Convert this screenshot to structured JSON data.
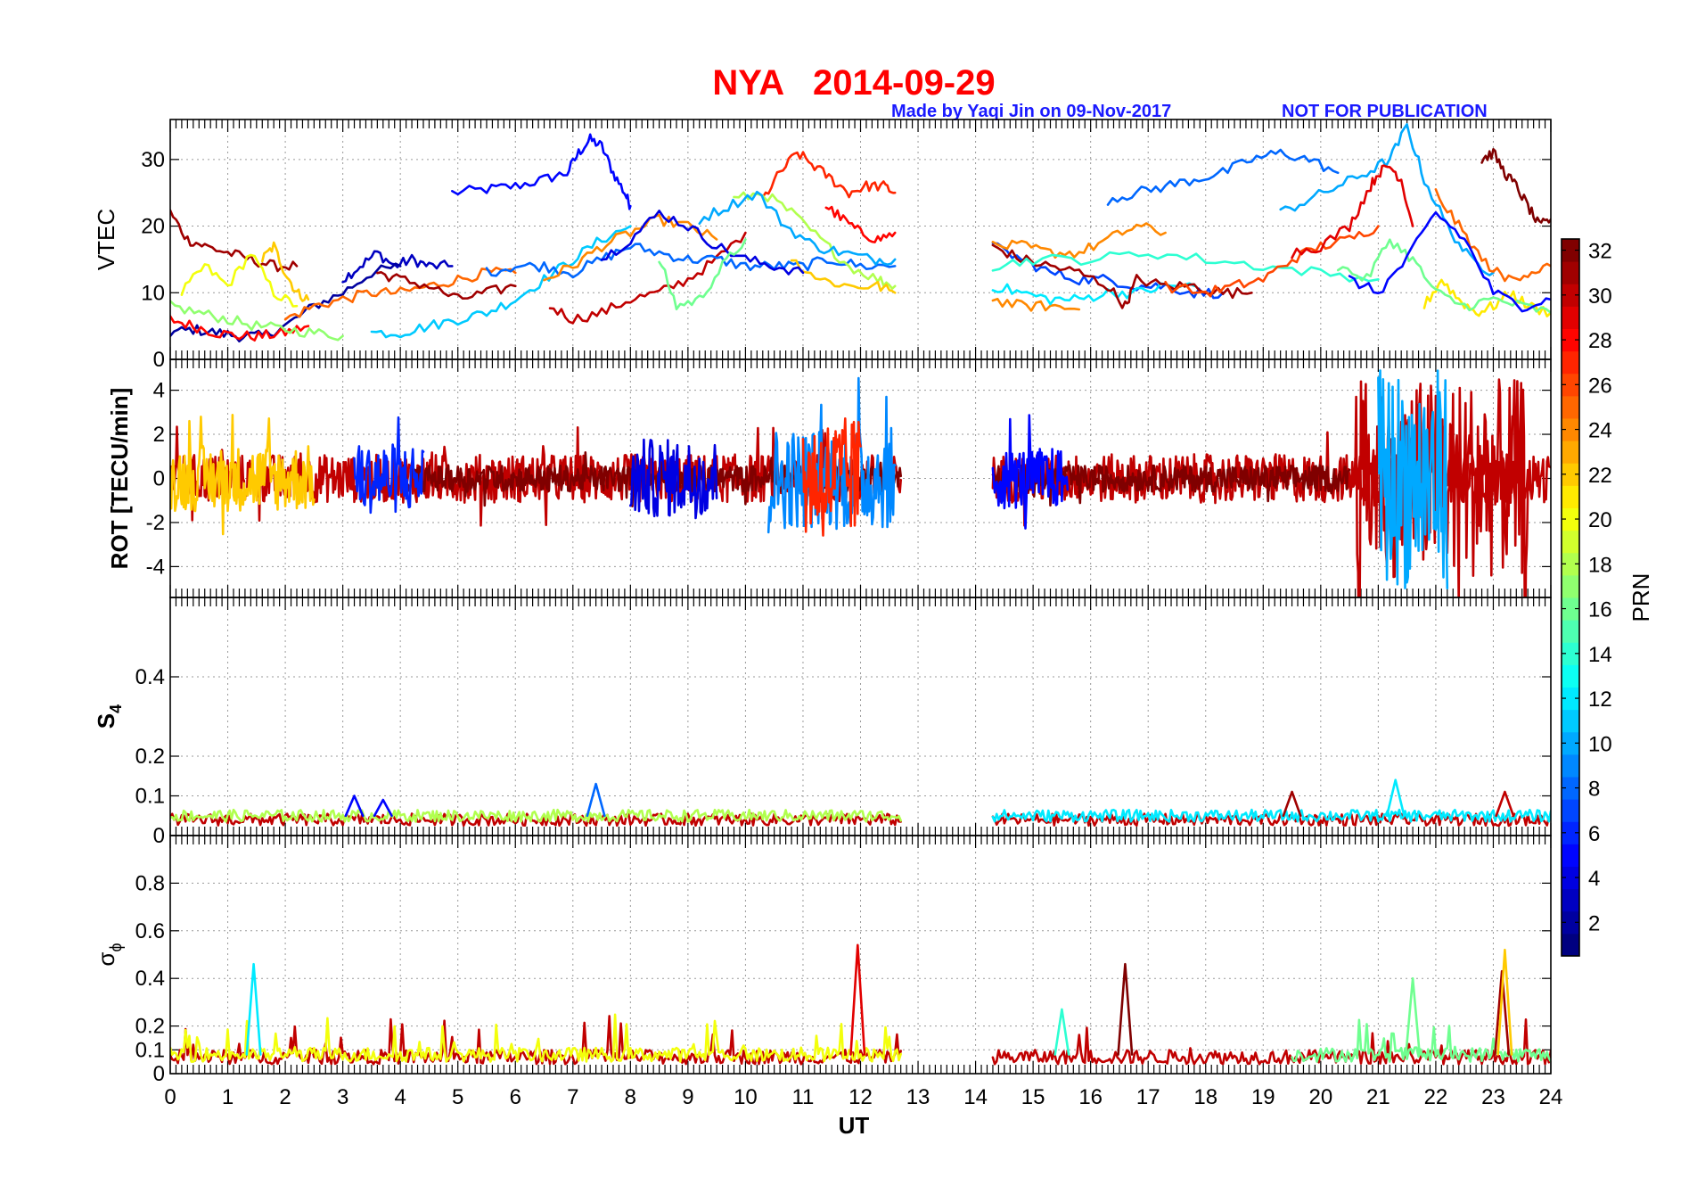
{
  "header": {
    "title": "NYA   2014-09-29",
    "credit": "Made by Yaqi Jin on 09-Nov-2017",
    "notice": "NOT FOR PUBLICATION"
  },
  "chart_data": {
    "type": "line",
    "xlabel": "UT",
    "x_ticks": [
      "0",
      "1",
      "2",
      "3",
      "4",
      "5",
      "6",
      "7",
      "8",
      "9",
      "10",
      "11",
      "12",
      "13",
      "14",
      "15",
      "16",
      "17",
      "18",
      "19",
      "20",
      "21",
      "22",
      "23",
      "24"
    ],
    "xlim": [
      0,
      24
    ],
    "data_gap": [
      12.7,
      14.3
    ],
    "grid": true,
    "panels": [
      {
        "name": "vtec",
        "ylabel": "VTEC",
        "ylim": [
          0,
          36
        ],
        "yticks": [
          "0",
          "10",
          "20",
          "30"
        ],
        "ytick_values": [
          0,
          10,
          20,
          30
        ]
      },
      {
        "name": "rot",
        "ylabel": "ROT [TECU/min]",
        "ylim": [
          -5.4,
          5.4
        ],
        "yticks": [
          "-4",
          "-2",
          "0",
          "2",
          "4"
        ],
        "ytick_values": [
          -4,
          -2,
          0,
          2,
          4
        ]
      },
      {
        "name": "s4",
        "ylabel": "S",
        "ylabel_sub": "4",
        "ylim": [
          0,
          0.6
        ],
        "yticks": [
          "0",
          "0.1",
          "0.2",
          "0.4"
        ],
        "ytick_values": [
          0,
          0.1,
          0.2,
          0.4
        ]
      },
      {
        "name": "sigma",
        "ylabel": "σ",
        "ylabel_sub": "ϕ",
        "ylim": [
          0,
          1
        ],
        "yticks": [
          "0",
          "0.1",
          "0.2",
          "0.4",
          "0.6",
          "0.8"
        ],
        "ytick_values": [
          0,
          0.1,
          0.2,
          0.4,
          0.6,
          0.8
        ]
      }
    ],
    "colorbar": {
      "label": "PRN",
      "range": [
        1,
        32
      ],
      "ticks": [
        "2",
        "4",
        "6",
        "8",
        "10",
        "12",
        "14",
        "16",
        "18",
        "20",
        "22",
        "24",
        "26",
        "28",
        "30",
        "32"
      ],
      "tick_values": [
        2,
        4,
        6,
        8,
        10,
        12,
        14,
        16,
        18,
        20,
        22,
        24,
        26,
        28,
        30,
        32
      ],
      "colormap": "jet"
    },
    "vtec_series": [
      {
        "prn": 5,
        "x": [
          4.9,
          5.5,
          6.0,
          6.5,
          6.9,
          7.1,
          7.3,
          7.5,
          7.7,
          7.9,
          8.0
        ],
        "y": [
          25,
          25.5,
          26,
          27,
          28,
          31,
          33,
          32,
          28,
          25,
          23
        ]
      },
      {
        "prn": 3,
        "x": [
          3.0,
          3.3,
          3.6,
          3.9,
          4.2,
          4.5,
          4.9
        ],
        "y": [
          12,
          14,
          16,
          14,
          15,
          14,
          14
        ]
      },
      {
        "prn": 2,
        "x": [
          0,
          0.4,
          0.8,
          1.2,
          1.6,
          2.0,
          2.5,
          3.0,
          3.5,
          4.0
        ],
        "y": [
          4,
          4.5,
          4,
          3.5,
          3.5,
          5,
          8,
          10,
          13,
          14
        ]
      },
      {
        "prn": 28,
        "x": [
          0,
          0.4,
          0.8,
          1.2,
          1.6,
          2.0,
          2.4
        ],
        "y": [
          6,
          5,
          4,
          3.5,
          3.5,
          4,
          5
        ]
      },
      {
        "prn": 31,
        "x": [
          0,
          0.3,
          0.6,
          1.0,
          1.4,
          1.8,
          2.2
        ],
        "y": [
          22,
          18,
          17,
          16,
          15,
          14,
          14
        ]
      },
      {
        "prn": 20,
        "x": [
          0.2,
          0.6,
          1.0,
          1.4,
          1.8,
          2.2
        ],
        "y": [
          10,
          14,
          11,
          16,
          10,
          8
        ]
      },
      {
        "prn": 22,
        "x": [
          1.6,
          1.8,
          2.0,
          2.2,
          2.4
        ],
        "y": [
          15,
          17,
          13,
          10,
          9
        ]
      },
      {
        "prn": 25,
        "x": [
          2.0,
          2.5,
          3.0,
          3.5,
          4.0,
          4.5,
          5.0,
          5.5,
          6.0
        ],
        "y": [
          6,
          8,
          9,
          10,
          10,
          11,
          12,
          13,
          13
        ]
      },
      {
        "prn": 17,
        "x": [
          0,
          0.5,
          1.0,
          1.5,
          2.0,
          2.5,
          3.0
        ],
        "y": [
          8,
          7,
          6,
          5,
          4.5,
          4,
          3.5
        ]
      },
      {
        "prn": 11,
        "x": [
          3.5,
          4.0,
          4.5,
          5.0,
          5.5,
          6.0,
          6.5,
          7.0,
          7.5,
          8.0
        ],
        "y": [
          4,
          4,
          5,
          6,
          7,
          9,
          12,
          15,
          18,
          20
        ]
      },
      {
        "prn": 31,
        "x": [
          3.6,
          4.0,
          4.5,
          5.0,
          5.5,
          6.0
        ],
        "y": [
          13,
          12,
          11,
          9,
          10,
          11
        ]
      },
      {
        "prn": 30,
        "x": [
          6.6,
          7.0,
          7.5,
          8.0,
          8.5,
          9.0,
          9.5,
          10.0
        ],
        "y": [
          8,
          6,
          7,
          9,
          10,
          12,
          15,
          19
        ]
      },
      {
        "prn": 8,
        "x": [
          5.5,
          6.0,
          6.5,
          7.0,
          7.5,
          8.0,
          8.5,
          9.0,
          9.5,
          10.0,
          10.5,
          11.0,
          11.5,
          12.0,
          12.6
        ],
        "y": [
          13,
          14,
          14,
          13,
          15,
          17,
          16,
          15,
          15,
          14,
          14,
          14,
          15,
          14,
          14
        ]
      },
      {
        "prn": 24,
        "x": [
          6.5,
          7.0,
          7.5,
          8.0,
          8.5,
          9.0,
          9.5
        ],
        "y": [
          12,
          14,
          17,
          19,
          21,
          20,
          18
        ]
      },
      {
        "prn": 27,
        "x": [
          10.3,
          10.6,
          10.9,
          11.2,
          11.5,
          11.8,
          12.1,
          12.4,
          12.6
        ],
        "y": [
          24,
          28,
          31,
          29,
          27,
          25,
          26,
          26,
          25
        ]
      },
      {
        "prn": 28,
        "x": [
          11.4,
          11.7,
          12.0,
          12.3,
          12.6
        ],
        "y": [
          23,
          21,
          19,
          18,
          19
        ]
      },
      {
        "prn": 18,
        "x": [
          9.8,
          10.3,
          10.8,
          11.3,
          11.8,
          12.3,
          12.6
        ],
        "y": [
          24,
          25,
          22,
          18,
          14,
          12,
          11
        ]
      },
      {
        "prn": 22,
        "x": [
          10.8,
          11.3,
          11.8,
          12.3,
          12.6
        ],
        "y": [
          15,
          12,
          11,
          11,
          10
        ]
      },
      {
        "prn": 10,
        "x": [
          9.2,
          9.7,
          10.2,
          10.7,
          11.2,
          11.7,
          12.2,
          12.6
        ],
        "y": [
          21,
          23,
          25,
          20,
          17,
          16,
          15,
          15
        ]
      },
      {
        "prn": 4,
        "x": [
          7.5,
          8.0,
          8.5,
          9.0,
          9.5,
          10.0,
          10.5,
          11.0
        ],
        "y": [
          15,
          18,
          22,
          20,
          17,
          15,
          14,
          13
        ]
      },
      {
        "prn": 16,
        "x": [
          8.5,
          8.8,
          9.2,
          9.6,
          10.0
        ],
        "y": [
          15,
          8,
          9,
          14,
          18
        ]
      },
      {
        "prn": 7,
        "x": [
          14.3,
          14.8,
          15.3,
          15.8,
          16.3,
          16.8,
          17.3,
          17.8,
          18.3
        ],
        "y": [
          17,
          15,
          13,
          12,
          12,
          11,
          11,
          10,
          10
        ]
      },
      {
        "prn": 24,
        "x": [
          14.3,
          14.8,
          15.3,
          15.8,
          16.3,
          16.8,
          17.3
        ],
        "y": [
          17,
          17,
          16,
          16,
          18,
          20,
          19
        ]
      },
      {
        "prn": 24,
        "x": [
          14.3,
          14.8,
          15.3,
          15.8
        ],
        "y": [
          9,
          8,
          8,
          7.5
        ]
      },
      {
        "prn": 12,
        "x": [
          14.3,
          14.8,
          15.3,
          15.8,
          16.3,
          16.8,
          17.3,
          17.8
        ],
        "y": [
          11,
          10,
          9,
          9,
          10,
          10,
          11,
          11
        ]
      },
      {
        "prn": 31,
        "x": [
          14.3,
          14.8,
          15.3,
          15.8,
          16.3,
          16.6,
          16.8,
          17.3,
          17.8,
          18.3,
          18.8
        ],
        "y": [
          17,
          15,
          14,
          13,
          11,
          8,
          12,
          11,
          11,
          10,
          10
        ]
      },
      {
        "prn": 8,
        "x": [
          16.3,
          16.8,
          17.3,
          17.8,
          18.3,
          18.8,
          19.3,
          19.8,
          20.3
        ],
        "y": [
          24,
          25,
          26,
          27,
          28,
          30,
          31,
          30,
          28
        ]
      },
      {
        "prn": 10,
        "x": [
          19.3,
          19.8,
          20.3,
          20.8,
          21.2,
          21.5,
          21.8,
          22.2,
          22.6,
          23.0
        ],
        "y": [
          22,
          24,
          26,
          28,
          30,
          35,
          27,
          20,
          15,
          13
        ]
      },
      {
        "prn": 14,
        "x": [
          14.3,
          15.0,
          16.0,
          17.0,
          18.0,
          19.0,
          20.0,
          21.0
        ],
        "y": [
          14,
          15,
          15,
          16,
          15,
          14,
          13,
          12
        ]
      },
      {
        "prn": 26,
        "x": [
          17.3,
          18.0,
          18.5,
          19.0,
          19.5,
          20.0,
          20.5,
          21.0
        ],
        "y": [
          11,
          10,
          11,
          12,
          15,
          17,
          18,
          20
        ]
      },
      {
        "prn": 29,
        "x": [
          19.5,
          20.0,
          20.5,
          20.8,
          21.0,
          21.2,
          21.4,
          21.6
        ],
        "y": [
          16,
          17,
          20,
          25,
          28,
          29,
          27,
          20
        ]
      },
      {
        "prn": 32,
        "x": [
          22.8,
          23.0,
          23.2,
          23.4,
          23.6,
          23.8,
          24.0
        ],
        "y": [
          30,
          31,
          28,
          26,
          23,
          20,
          21
        ]
      },
      {
        "prn": 21,
        "x": [
          21.8,
          22.1,
          22.4,
          22.7,
          23.0,
          23.3,
          23.6,
          24.0
        ],
        "y": [
          8,
          12,
          9,
          7,
          8,
          10,
          8,
          7
        ]
      },
      {
        "prn": 16,
        "x": [
          20.3,
          20.8,
          21.2,
          21.6,
          22.0,
          22.5,
          23.0,
          23.5,
          24.0
        ],
        "y": [
          14,
          12,
          18,
          15,
          10,
          8,
          9,
          8,
          7
        ]
      },
      {
        "prn": 25,
        "x": [
          22.0,
          22.4,
          22.8,
          23.2,
          23.6,
          24.0
        ],
        "y": [
          25,
          20,
          15,
          12,
          13,
          14
        ]
      },
      {
        "prn": 5,
        "x": [
          20.5,
          21.0,
          21.5,
          22.0,
          22.5,
          23.0,
          23.5,
          24.0
        ],
        "y": [
          12,
          10,
          15,
          22,
          18,
          10,
          8,
          9
        ]
      }
    ],
    "rot_series": [
      {
        "prn": 30,
        "amplitude": 1.1,
        "x_range": [
          0,
          12.7
        ]
      },
      {
        "prn": 30,
        "amplitude": 1.1,
        "x_range": [
          14.3,
          24
        ]
      },
      {
        "prn": 32,
        "amplitude": 0.6,
        "x_range": [
          4,
          12.7
        ]
      },
      {
        "prn": 32,
        "amplitude": 0.6,
        "x_range": [
          14.3,
          20.5
        ]
      },
      {
        "prn": 22,
        "amplitude": 1.5,
        "x_range": [
          0,
          2.5
        ]
      },
      {
        "prn": 6,
        "amplitude": 1.6,
        "x_range": [
          3.2,
          4.4
        ]
      },
      {
        "prn": 4,
        "amplitude": 1.8,
        "x_range": [
          8.0,
          9.5
        ]
      },
      {
        "prn": 9,
        "amplitude": 2.3,
        "x_range": [
          10.4,
          12.6
        ]
      },
      {
        "prn": 27,
        "amplitude": 2.8,
        "x_range": [
          11.0,
          12.0
        ]
      },
      {
        "prn": 5,
        "amplitude": 1.4,
        "x_range": [
          14.3,
          15.6
        ]
      },
      {
        "prn": 30,
        "amplitude": 4.5,
        "x_range": [
          20.6,
          23.6
        ]
      },
      {
        "prn": 10,
        "amplitude": 5.0,
        "x_range": [
          21.0,
          22.2
        ]
      }
    ],
    "s4_series": [
      {
        "prn": 30,
        "baseline": 0.04,
        "x_range": [
          0,
          12.7
        ]
      },
      {
        "prn": 30,
        "baseline": 0.04,
        "x_range": [
          14.3,
          24
        ]
      },
      {
        "prn": 18,
        "baseline": 0.05,
        "x_range": [
          0,
          12.7
        ]
      },
      {
        "prn": 12,
        "baseline": 0.05,
        "x_range": [
          14.3,
          24
        ]
      }
    ],
    "s4_peaks": [
      {
        "prn": 5,
        "x": 3.2,
        "y": 0.1
      },
      {
        "prn": 5,
        "x": 3.7,
        "y": 0.09
      },
      {
        "prn": 8,
        "x": 7.4,
        "y": 0.13
      },
      {
        "prn": 31,
        "x": 19.5,
        "y": 0.11
      },
      {
        "prn": 12,
        "x": 21.3,
        "y": 0.14
      },
      {
        "prn": 30,
        "x": 23.2,
        "y": 0.11
      }
    ],
    "sigma_series": [
      {
        "prn": 30,
        "baseline": 0.07,
        "x_range": [
          0,
          12.7
        ]
      },
      {
        "prn": 30,
        "baseline": 0.07,
        "x_range": [
          14.3,
          24
        ]
      },
      {
        "prn": 20,
        "baseline": 0.08,
        "x_range": [
          0,
          12.7
        ]
      },
      {
        "prn": 16,
        "baseline": 0.08,
        "x_range": [
          19.5,
          24
        ]
      }
    ],
    "sigma_peaks": [
      {
        "prn": 12,
        "x": 1.45,
        "y": 0.46
      },
      {
        "prn": 29,
        "x": 11.95,
        "y": 0.54
      },
      {
        "prn": 32,
        "x": 16.6,
        "y": 0.46
      },
      {
        "prn": 14,
        "x": 15.5,
        "y": 0.27
      },
      {
        "prn": 31,
        "x": 23.15,
        "y": 0.43
      },
      {
        "prn": 22,
        "x": 23.2,
        "y": 0.52
      },
      {
        "prn": 16,
        "x": 21.6,
        "y": 0.4
      }
    ]
  }
}
